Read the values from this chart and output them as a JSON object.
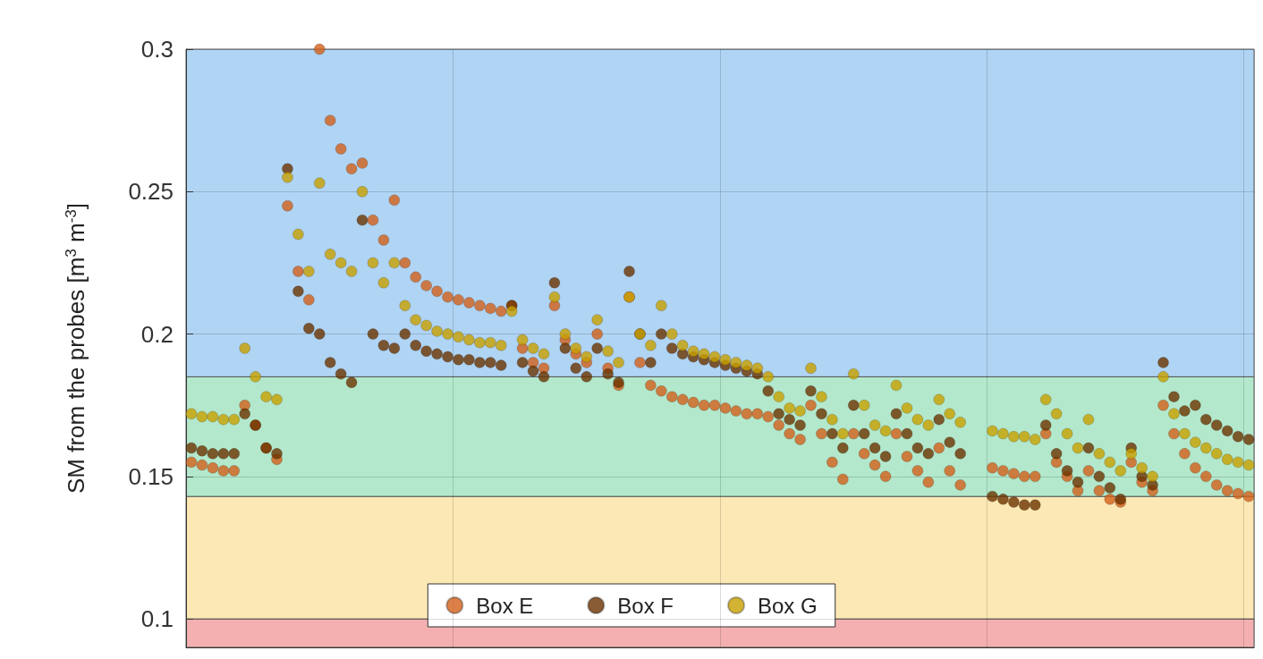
{
  "chart_data": {
    "type": "scatter",
    "ylabel": "SM from the probes [m$^{3}$ m$^{-3}$]",
    "categories": [
      null,
      null,
      null,
      null,
      null,
      null,
      null,
      null,
      null,
      null,
      null,
      null,
      null,
      null,
      null,
      null,
      null,
      null,
      null,
      null,
      null,
      null,
      null,
      null,
      null,
      null,
      null,
      null,
      null,
      null,
      null,
      null,
      null,
      null,
      null,
      null,
      null,
      null,
      null,
      null,
      null,
      null,
      null,
      null,
      null,
      null,
      null,
      null,
      null,
      null,
      null,
      null,
      null,
      null,
      null,
      null,
      null,
      null,
      null,
      null,
      null,
      null,
      null,
      null,
      null,
      null,
      null,
      null,
      null,
      null,
      null,
      null,
      null,
      null,
      null,
      null,
      null,
      null,
      null,
      null,
      null,
      null,
      null,
      null,
      null,
      null,
      null,
      null,
      null,
      null,
      null,
      null,
      null,
      null,
      null,
      null,
      null,
      null,
      null,
      null
    ],
    "series": [
      {
        "name": "Box E",
        "color": "#d2601a",
        "values": [
          0.155,
          0.154,
          0.153,
          0.152,
          0.152,
          0.175,
          0.168,
          0.16,
          0.156,
          0.245,
          0.222,
          0.212,
          0.3,
          0.275,
          0.265,
          0.258,
          0.26,
          0.24,
          0.233,
          0.247,
          0.225,
          0.22,
          0.217,
          0.215,
          0.213,
          0.212,
          0.211,
          0.21,
          0.209,
          0.208,
          0.21,
          0.195,
          0.19,
          0.188,
          0.21,
          0.198,
          0.193,
          0.19,
          0.2,
          0.188,
          0.182,
          0.213,
          0.19,
          0.182,
          0.18,
          0.178,
          0.177,
          0.176,
          0.175,
          0.175,
          0.174,
          0.173,
          0.172,
          0.172,
          0.171,
          0.168,
          0.165,
          0.163,
          0.175,
          0.165,
          0.155,
          0.149,
          0.165,
          0.158,
          0.154,
          0.15,
          0.165,
          0.157,
          0.152,
          0.148,
          0.16,
          0.152,
          0.147,
          null,
          null,
          0.153,
          0.152,
          0.151,
          0.15,
          0.15,
          0.165,
          0.155,
          0.15,
          0.145,
          0.152,
          0.145,
          0.142,
          0.141,
          0.155,
          0.148,
          0.145,
          0.175,
          0.165,
          0.158,
          0.153,
          0.15,
          0.147,
          0.145,
          0.144,
          0.143
        ]
      },
      {
        "name": "Box F",
        "color": "#6b3300",
        "values": [
          0.16,
          0.159,
          0.158,
          0.158,
          0.158,
          0.172,
          0.168,
          0.16,
          0.158,
          0.258,
          0.215,
          0.202,
          0.2,
          0.19,
          0.186,
          0.183,
          0.24,
          0.2,
          0.196,
          0.195,
          0.2,
          0.196,
          0.194,
          0.193,
          0.192,
          0.191,
          0.191,
          0.19,
          0.19,
          0.189,
          0.21,
          0.19,
          0.187,
          0.185,
          0.218,
          0.195,
          0.188,
          0.185,
          0.195,
          0.186,
          0.183,
          0.222,
          0.2,
          0.19,
          0.2,
          0.195,
          0.193,
          0.192,
          0.191,
          0.19,
          0.189,
          0.188,
          0.187,
          0.186,
          0.18,
          0.172,
          0.17,
          0.168,
          0.18,
          0.172,
          0.165,
          0.16,
          0.175,
          0.165,
          0.16,
          0.157,
          0.172,
          0.165,
          0.16,
          0.158,
          0.17,
          0.162,
          0.158,
          null,
          null,
          0.143,
          0.142,
          0.141,
          0.14,
          0.14,
          0.168,
          0.158,
          0.152,
          0.148,
          0.16,
          0.15,
          0.146,
          0.142,
          0.16,
          0.15,
          0.147,
          0.19,
          0.178,
          0.173,
          0.175,
          0.17,
          0.168,
          0.166,
          0.164,
          0.163
        ]
      },
      {
        "name": "Box G",
        "color": "#c8a000",
        "values": [
          0.172,
          0.171,
          0.171,
          0.17,
          0.17,
          0.195,
          0.185,
          0.178,
          0.177,
          0.255,
          0.235,
          0.222,
          0.253,
          0.228,
          0.225,
          0.222,
          0.25,
          0.225,
          0.218,
          0.225,
          0.21,
          0.205,
          0.203,
          0.201,
          0.2,
          0.199,
          0.198,
          0.197,
          0.197,
          0.196,
          0.208,
          0.198,
          0.195,
          0.193,
          0.213,
          0.2,
          0.195,
          0.192,
          0.205,
          0.194,
          0.19,
          0.213,
          0.2,
          0.196,
          0.21,
          0.2,
          0.196,
          0.194,
          0.193,
          0.192,
          0.191,
          0.19,
          0.189,
          0.188,
          0.185,
          0.178,
          0.174,
          0.173,
          0.188,
          0.178,
          0.17,
          0.165,
          0.186,
          0.175,
          0.168,
          0.166,
          0.182,
          0.174,
          0.17,
          0.168,
          0.177,
          0.172,
          0.169,
          null,
          null,
          0.166,
          0.165,
          0.164,
          0.164,
          0.163,
          0.177,
          0.172,
          0.165,
          0.16,
          0.17,
          0.158,
          0.155,
          0.152,
          0.158,
          0.153,
          0.15,
          0.185,
          0.172,
          0.165,
          0.162,
          0.16,
          0.158,
          0.156,
          0.155,
          0.154
        ]
      }
    ],
    "ylim": [
      0.09,
      0.3
    ],
    "yticks": [
      0.1,
      0.15,
      0.2,
      0.25,
      0.3
    ],
    "bands": [
      {
        "axis": "y",
        "from": 0.09,
        "to": 0.1,
        "color": "#f4b0b0"
      },
      {
        "axis": "y",
        "from": 0.1,
        "to": 0.143,
        "color": "#fce8b4"
      },
      {
        "axis": "y",
        "from": 0.143,
        "to": 0.185,
        "color": "#b3e8cc"
      },
      {
        "axis": "y",
        "from": 0.185,
        "to": 0.3,
        "color": "#b0d4f4"
      }
    ],
    "grid": true,
    "legend": "bottom",
    "marker": "circle",
    "tick_labels": "y"
  }
}
